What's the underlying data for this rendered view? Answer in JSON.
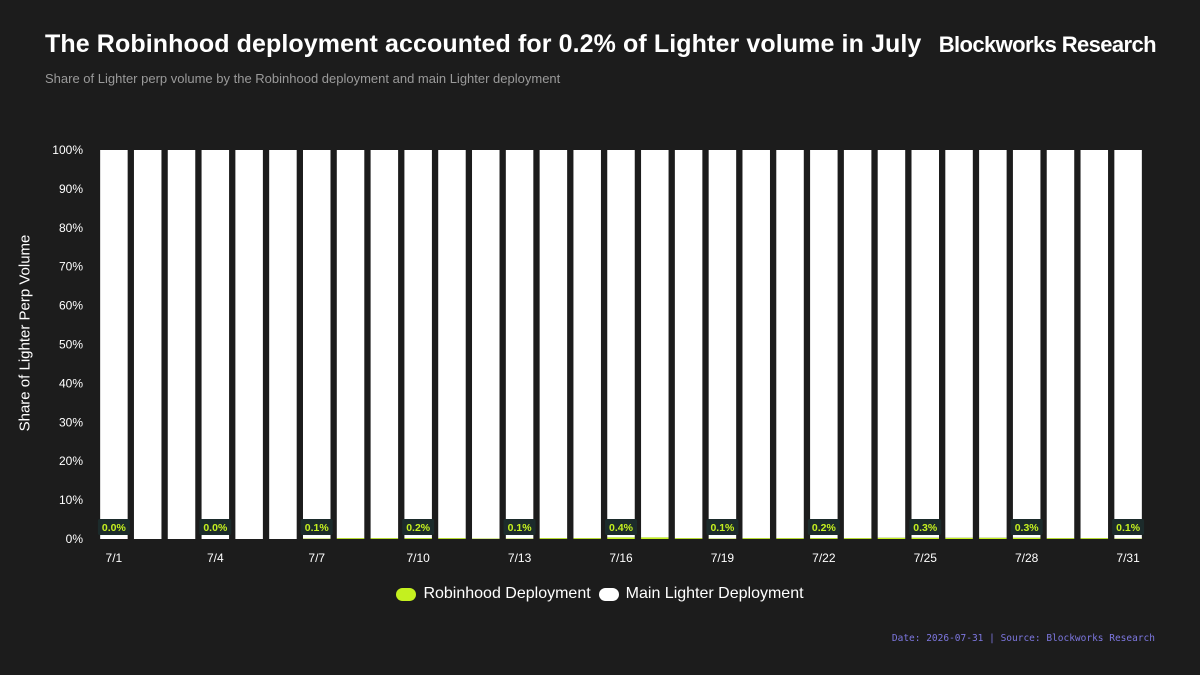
{
  "title": "The Robinhood deployment accounted for 0.2% of Lighter volume in July",
  "subtitle": "Share of Lighter perp volume by the Robinhood deployment and main Lighter deployment",
  "brand": "Blockworks Research",
  "footer": {
    "date": "Date: 2026-07-31",
    "separator": " | ",
    "source": "Source: Blockworks Research"
  },
  "colors": {
    "background": "#1c1c1c",
    "robinhood": "#c4f01f",
    "main": "#ffffff",
    "label_box": "#1c2b2b",
    "footer": "#7d77e0"
  },
  "chart_data": {
    "type": "bar",
    "stacked": true,
    "title": "The Robinhood deployment accounted for 0.2% of Lighter volume in July",
    "ylabel": "Share of Lighter Perp Volume",
    "xlabel": "",
    "ylim": [
      0,
      100
    ],
    "yticks": [
      "0%",
      "10%",
      "20%",
      "30%",
      "40%",
      "50%",
      "60%",
      "70%",
      "80%",
      "90%",
      "100%"
    ],
    "categories": [
      "7/1",
      "7/2",
      "7/3",
      "7/4",
      "7/5",
      "7/6",
      "7/7",
      "7/8",
      "7/9",
      "7/10",
      "7/11",
      "7/12",
      "7/13",
      "7/14",
      "7/15",
      "7/16",
      "7/17",
      "7/18",
      "7/19",
      "7/20",
      "7/21",
      "7/22",
      "7/23",
      "7/24",
      "7/25",
      "7/26",
      "7/27",
      "7/28",
      "7/29",
      "7/30",
      "7/31"
    ],
    "xtick_labels": [
      "7/1",
      "7/4",
      "7/7",
      "7/10",
      "7/13",
      "7/16",
      "7/19",
      "7/22",
      "7/25",
      "7/28",
      "7/31"
    ],
    "series": [
      {
        "name": "Robinhood Deployment",
        "color": "#c4f01f",
        "values": [
          0.0,
          0.0,
          0.0,
          0.0,
          0.0,
          0.0,
          0.1,
          0.2,
          0.2,
          0.2,
          0.2,
          0.1,
          0.1,
          0.2,
          0.2,
          0.4,
          0.4,
          0.2,
          0.1,
          0.2,
          0.2,
          0.2,
          0.2,
          0.3,
          0.3,
          0.3,
          0.3,
          0.3,
          0.2,
          0.2,
          0.1
        ]
      },
      {
        "name": "Main Lighter Deployment",
        "color": "#ffffff",
        "values": [
          100.0,
          100.0,
          100.0,
          100.0,
          100.0,
          100.0,
          99.9,
          99.8,
          99.8,
          99.8,
          99.8,
          99.9,
          99.9,
          99.8,
          99.8,
          99.6,
          99.6,
          99.8,
          99.9,
          99.8,
          99.8,
          99.8,
          99.8,
          99.7,
          99.7,
          99.7,
          99.7,
          99.7,
          99.8,
          99.8,
          99.9
        ]
      }
    ],
    "data_labels": [
      {
        "category": "7/1",
        "text": "0.0%"
      },
      {
        "category": "7/4",
        "text": "0.0%"
      },
      {
        "category": "7/7",
        "text": "0.1%"
      },
      {
        "category": "7/10",
        "text": "0.2%"
      },
      {
        "category": "7/13",
        "text": "0.1%"
      },
      {
        "category": "7/16",
        "text": "0.4%"
      },
      {
        "category": "7/19",
        "text": "0.1%"
      },
      {
        "category": "7/22",
        "text": "0.2%"
      },
      {
        "category": "7/25",
        "text": "0.3%"
      },
      {
        "category": "7/28",
        "text": "0.3%"
      },
      {
        "category": "7/31",
        "text": "0.1%"
      }
    ],
    "legend": {
      "position": "bottom-center",
      "entries": [
        "Robinhood Deployment",
        "Main Lighter Deployment"
      ]
    },
    "grid": false
  }
}
